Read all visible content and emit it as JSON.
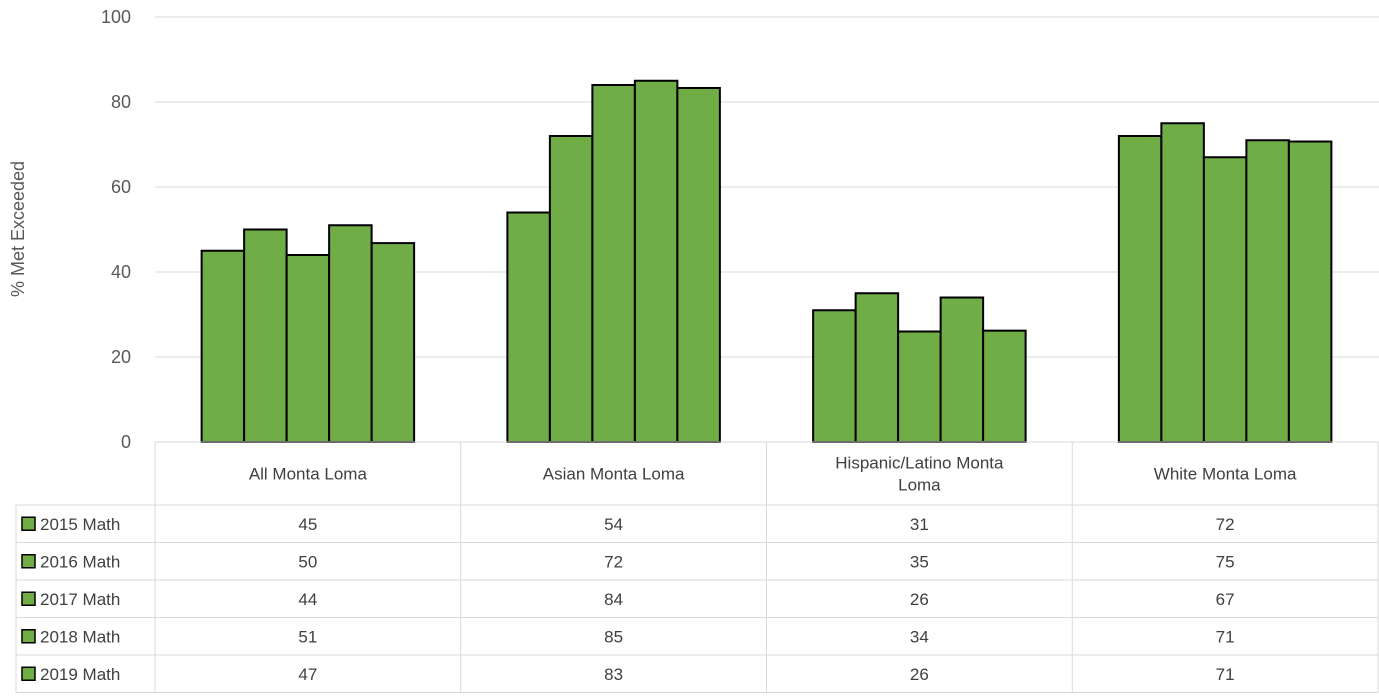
{
  "colors": {
    "bar_fill": "#70ad47",
    "bar_stroke": "#000000",
    "grid": "#d9d9d9",
    "table_border": "#d9d9d9",
    "text": "#404040"
  },
  "chart_data": {
    "type": "bar",
    "title": "",
    "xlabel": "",
    "ylabel": "% Met Exceeded",
    "ylim": [
      0,
      100
    ],
    "yticks": [
      0,
      20,
      40,
      60,
      80,
      100
    ],
    "grid": true,
    "legend": "data-table",
    "categories": [
      [
        "All Monta Loma"
      ],
      [
        "Asian Monta Loma"
      ],
      [
        "Hispanic/Latino Monta",
        "Loma"
      ],
      [
        "White Monta Loma"
      ]
    ],
    "series": [
      {
        "name": "2015 Math",
        "values": [
          45,
          54,
          31,
          72
        ]
      },
      {
        "name": "2016 Math",
        "values": [
          50,
          72,
          35,
          75
        ]
      },
      {
        "name": "2017 Math",
        "values": [
          44,
          84,
          26,
          67
        ]
      },
      {
        "name": "2018 Math",
        "values": [
          51,
          85,
          34,
          71
        ]
      },
      {
        "name": "2019 Math",
        "values": [
          47,
          83,
          26,
          71
        ]
      }
    ],
    "bar_values": [
      [
        45,
        54,
        31,
        72
      ],
      [
        50,
        72,
        35,
        75
      ],
      [
        44,
        84,
        26,
        67
      ],
      [
        51,
        85,
        34,
        71
      ],
      [
        46.8,
        83.3,
        26.2,
        70.7
      ]
    ]
  }
}
